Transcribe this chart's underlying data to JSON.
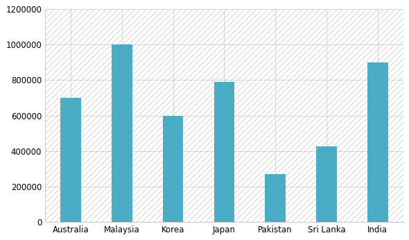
{
  "categories": [
    "Australia",
    "Malaysia",
    "Korea",
    "Japan",
    "Pakistan",
    "Sri Lanka",
    "India"
  ],
  "values": [
    700000,
    1000000,
    600000,
    790000,
    270000,
    425000,
    900000
  ],
  "bar_color": "#4BACC6",
  "ylim": [
    0,
    1200000
  ],
  "yticks": [
    0,
    200000,
    400000,
    600000,
    800000,
    1000000,
    1200000
  ],
  "background_color": "#ffffff",
  "plot_bg_color": "#ffffff",
  "grid_color": "#d0d0d0",
  "hatch_color": "#e0e0e0",
  "bar_width": 0.4,
  "tick_fontsize": 8.5
}
